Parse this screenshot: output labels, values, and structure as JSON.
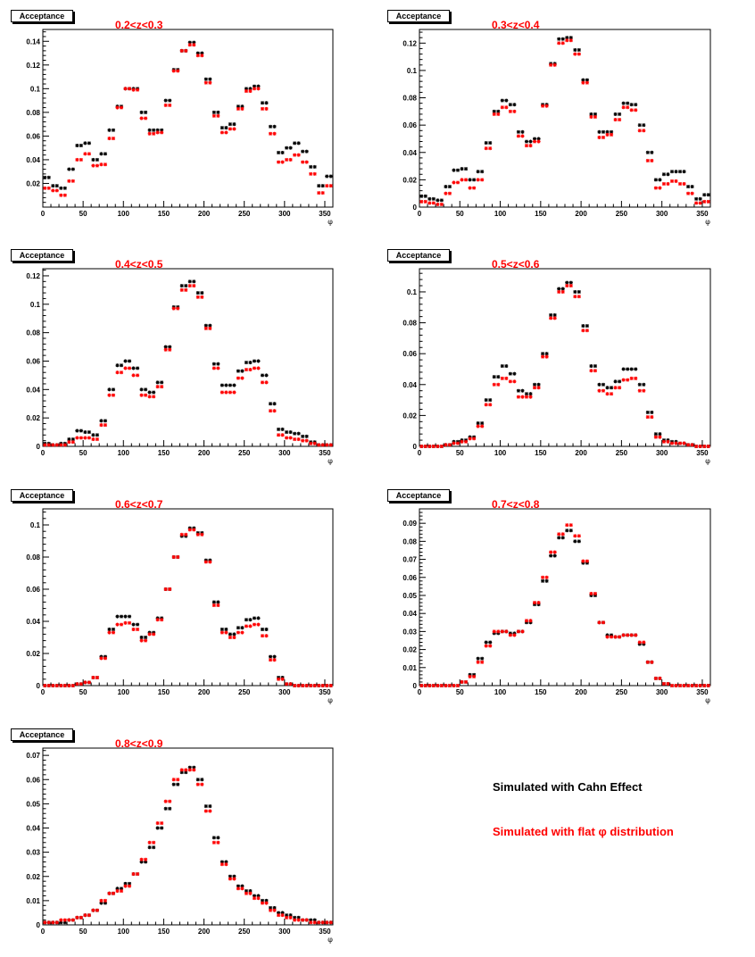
{
  "colors": {
    "cahn": "#000000",
    "flat": "#ff0000",
    "title": "#ff0000"
  },
  "legend": {
    "cahn_label": "Simulated with Cahn Effect",
    "flat_label": "Simulated with flat φ distribution"
  },
  "chart_data": [
    {
      "type": "scatter",
      "badge": "Acceptance",
      "title": "0.2<z<0.3",
      "xlabel": "φ",
      "xlim": [
        0,
        360
      ],
      "ylim": [
        0,
        0.15
      ],
      "xticks": [
        0,
        50,
        100,
        150,
        200,
        250,
        300,
        350
      ],
      "yticks": [
        0.02,
        0.04,
        0.06,
        0.08,
        0.1,
        0.12,
        0.14
      ],
      "yticklabels": [
        "0.02",
        "0.04",
        "0.06",
        "0.08",
        "0.1",
        "0.12",
        "0.14"
      ],
      "x": [
        5,
        15,
        25,
        35,
        45,
        55,
        65,
        75,
        85,
        95,
        105,
        115,
        125,
        135,
        145,
        155,
        165,
        175,
        185,
        195,
        205,
        215,
        225,
        235,
        245,
        255,
        265,
        275,
        285,
        295,
        305,
        315,
        325,
        335,
        345,
        355
      ],
      "series": [
        {
          "name": "Simulated with Cahn Effect",
          "color": "#000000",
          "values": [
            0.025,
            0.018,
            0.016,
            0.032,
            0.052,
            0.054,
            0.04,
            0.045,
            0.065,
            0.085,
            0.1,
            0.1,
            0.08,
            0.065,
            0.065,
            0.09,
            0.116,
            0.132,
            0.139,
            0.13,
            0.108,
            0.08,
            0.067,
            0.07,
            0.085,
            0.1,
            0.102,
            0.088,
            0.068,
            0.046,
            0.05,
            0.054,
            0.047,
            0.034,
            0.018,
            0.026
          ]
        },
        {
          "name": "Simulated with flat φ distribution",
          "color": "#ff0000",
          "values": [
            0.016,
            0.014,
            0.01,
            0.022,
            0.04,
            0.045,
            0.035,
            0.036,
            0.058,
            0.084,
            0.1,
            0.099,
            0.075,
            0.062,
            0.063,
            0.086,
            0.115,
            0.132,
            0.137,
            0.128,
            0.105,
            0.077,
            0.063,
            0.066,
            0.083,
            0.098,
            0.1,
            0.083,
            0.062,
            0.038,
            0.04,
            0.044,
            0.038,
            0.028,
            0.012,
            0.018
          ]
        }
      ]
    },
    {
      "type": "scatter",
      "badge": "Acceptance",
      "title": "0.3<z<0.4",
      "xlabel": "φ",
      "xlim": [
        0,
        360
      ],
      "ylim": [
        0,
        0.13
      ],
      "xticks": [
        0,
        50,
        100,
        150,
        200,
        250,
        300,
        350
      ],
      "yticks": [
        0,
        0.02,
        0.04,
        0.06,
        0.08,
        0.1,
        0.12
      ],
      "yticklabels": [
        "0",
        "0.02",
        "0.04",
        "0.06",
        "0.08",
        "0.1",
        "0.12"
      ],
      "x": [
        5,
        15,
        25,
        35,
        45,
        55,
        65,
        75,
        85,
        95,
        105,
        115,
        125,
        135,
        145,
        155,
        165,
        175,
        185,
        195,
        205,
        215,
        225,
        235,
        245,
        255,
        265,
        275,
        285,
        295,
        305,
        315,
        325,
        335,
        345,
        355
      ],
      "series": [
        {
          "name": "Simulated with Cahn Effect",
          "color": "#000000",
          "values": [
            0.008,
            0.006,
            0.005,
            0.015,
            0.027,
            0.028,
            0.02,
            0.026,
            0.047,
            0.07,
            0.078,
            0.075,
            0.055,
            0.048,
            0.05,
            0.075,
            0.105,
            0.123,
            0.124,
            0.115,
            0.093,
            0.068,
            0.055,
            0.055,
            0.068,
            0.076,
            0.075,
            0.06,
            0.04,
            0.02,
            0.024,
            0.026,
            0.026,
            0.015,
            0.006,
            0.009
          ]
        },
        {
          "name": "Simulated with flat φ distribution",
          "color": "#ff0000",
          "values": [
            0.004,
            0.003,
            0.002,
            0.01,
            0.018,
            0.02,
            0.014,
            0.02,
            0.043,
            0.068,
            0.073,
            0.07,
            0.052,
            0.045,
            0.048,
            0.074,
            0.104,
            0.12,
            0.122,
            0.112,
            0.091,
            0.066,
            0.051,
            0.053,
            0.064,
            0.073,
            0.071,
            0.056,
            0.034,
            0.014,
            0.017,
            0.019,
            0.017,
            0.01,
            0.003,
            0.004
          ]
        }
      ]
    },
    {
      "type": "scatter",
      "badge": "Acceptance",
      "title": "0.4<z<0.5",
      "xlabel": "φ",
      "xlim": [
        0,
        360
      ],
      "ylim": [
        0,
        0.125
      ],
      "xticks": [
        0,
        50,
        100,
        150,
        200,
        250,
        300,
        350
      ],
      "yticks": [
        0,
        0.02,
        0.04,
        0.06,
        0.08,
        0.1,
        0.12
      ],
      "yticklabels": [
        "0",
        "0.02",
        "0.04",
        "0.06",
        "0.08",
        "0.1",
        "0.12"
      ],
      "x": [
        5,
        15,
        25,
        35,
        45,
        55,
        65,
        75,
        85,
        95,
        105,
        115,
        125,
        135,
        145,
        155,
        165,
        175,
        185,
        195,
        205,
        215,
        225,
        235,
        245,
        255,
        265,
        275,
        285,
        295,
        305,
        315,
        325,
        335,
        345,
        355
      ],
      "series": [
        {
          "name": "Simulated with Cahn Effect",
          "color": "#000000",
          "values": [
            0.002,
            0.001,
            0.002,
            0.005,
            0.011,
            0.01,
            0.008,
            0.018,
            0.04,
            0.057,
            0.06,
            0.055,
            0.04,
            0.038,
            0.045,
            0.07,
            0.098,
            0.113,
            0.116,
            0.108,
            0.085,
            0.058,
            0.043,
            0.043,
            0.053,
            0.059,
            0.06,
            0.05,
            0.03,
            0.012,
            0.01,
            0.009,
            0.007,
            0.003,
            0.001,
            0.001
          ]
        },
        {
          "name": "Simulated with flat φ distribution",
          "color": "#ff0000",
          "values": [
            0.001,
            0.001,
            0.001,
            0.003,
            0.006,
            0.006,
            0.005,
            0.015,
            0.036,
            0.052,
            0.055,
            0.05,
            0.036,
            0.035,
            0.042,
            0.068,
            0.097,
            0.11,
            0.113,
            0.105,
            0.083,
            0.055,
            0.038,
            0.038,
            0.048,
            0.054,
            0.055,
            0.045,
            0.025,
            0.008,
            0.006,
            0.005,
            0.004,
            0.002,
            0.001,
            0.001
          ]
        }
      ]
    },
    {
      "type": "scatter",
      "badge": "Acceptance",
      "title": "0.5<z<0.6",
      "xlabel": "φ",
      "xlim": [
        0,
        360
      ],
      "ylim": [
        0,
        0.115
      ],
      "xticks": [
        0,
        50,
        100,
        150,
        200,
        250,
        300,
        350
      ],
      "yticks": [
        0,
        0.02,
        0.04,
        0.06,
        0.08,
        0.1
      ],
      "yticklabels": [
        "0",
        "0.02",
        "0.04",
        "0.06",
        "0.08",
        "0.1"
      ],
      "x": [
        5,
        15,
        25,
        35,
        45,
        55,
        65,
        75,
        85,
        95,
        105,
        115,
        125,
        135,
        145,
        155,
        165,
        175,
        185,
        195,
        205,
        215,
        225,
        235,
        245,
        255,
        265,
        275,
        285,
        295,
        305,
        315,
        325,
        335,
        345,
        355
      ],
      "series": [
        {
          "name": "Simulated with Cahn Effect",
          "color": "#000000",
          "values": [
            0.0,
            0.0,
            0.0,
            0.001,
            0.003,
            0.004,
            0.006,
            0.015,
            0.03,
            0.045,
            0.052,
            0.047,
            0.036,
            0.034,
            0.04,
            0.06,
            0.085,
            0.102,
            0.106,
            0.1,
            0.078,
            0.052,
            0.04,
            0.038,
            0.042,
            0.05,
            0.05,
            0.04,
            0.022,
            0.008,
            0.004,
            0.003,
            0.002,
            0.001,
            0.0,
            0.0
          ]
        },
        {
          "name": "Simulated with flat φ distribution",
          "color": "#ff0000",
          "values": [
            0.0,
            0.0,
            0.0,
            0.001,
            0.002,
            0.003,
            0.005,
            0.013,
            0.027,
            0.04,
            0.044,
            0.042,
            0.032,
            0.032,
            0.038,
            0.058,
            0.083,
            0.1,
            0.104,
            0.097,
            0.075,
            0.049,
            0.036,
            0.034,
            0.038,
            0.043,
            0.044,
            0.036,
            0.019,
            0.006,
            0.003,
            0.002,
            0.002,
            0.001,
            0.0,
            0.0
          ]
        }
      ]
    },
    {
      "type": "scatter",
      "badge": "Acceptance",
      "title": "0.6<z<0.7",
      "xlabel": "φ",
      "xlim": [
        0,
        360
      ],
      "ylim": [
        0,
        0.11
      ],
      "xticks": [
        0,
        50,
        100,
        150,
        200,
        250,
        300,
        350
      ],
      "yticks": [
        0,
        0.02,
        0.04,
        0.06,
        0.08,
        0.1
      ],
      "yticklabels": [
        "0",
        "0.02",
        "0.04",
        "0.06",
        "0.08",
        "0.1"
      ],
      "x": [
        5,
        15,
        25,
        35,
        45,
        55,
        65,
        75,
        85,
        95,
        105,
        115,
        125,
        135,
        145,
        155,
        165,
        175,
        185,
        195,
        205,
        215,
        225,
        235,
        245,
        255,
        265,
        275,
        285,
        295,
        305,
        315,
        325,
        335,
        345,
        355
      ],
      "series": [
        {
          "name": "Simulated with Cahn Effect",
          "color": "#000000",
          "values": [
            0.0,
            0.0,
            0.0,
            0.0,
            0.001,
            0.002,
            0.005,
            0.018,
            0.035,
            0.043,
            0.043,
            0.038,
            0.03,
            0.033,
            0.042,
            0.06,
            0.08,
            0.093,
            0.098,
            0.095,
            0.078,
            0.052,
            0.035,
            0.032,
            0.036,
            0.041,
            0.042,
            0.035,
            0.018,
            0.005,
            0.001,
            0.0,
            0.0,
            0.0,
            0.0,
            0.0
          ]
        },
        {
          "name": "Simulated with flat φ distribution",
          "color": "#ff0000",
          "values": [
            0.0,
            0.0,
            0.0,
            0.0,
            0.001,
            0.002,
            0.005,
            0.017,
            0.033,
            0.038,
            0.039,
            0.035,
            0.028,
            0.032,
            0.041,
            0.06,
            0.08,
            0.094,
            0.097,
            0.094,
            0.077,
            0.05,
            0.033,
            0.03,
            0.033,
            0.037,
            0.038,
            0.031,
            0.016,
            0.004,
            0.001,
            0.0,
            0.0,
            0.0,
            0.0,
            0.0
          ]
        }
      ]
    },
    {
      "type": "scatter",
      "badge": "Acceptance",
      "title": "0.7<z<0.8",
      "xlabel": "φ",
      "xlim": [
        0,
        360
      ],
      "ylim": [
        0,
        0.098
      ],
      "xticks": [
        0,
        50,
        100,
        150,
        200,
        250,
        300,
        350
      ],
      "yticks": [
        0,
        0.01,
        0.02,
        0.03,
        0.04,
        0.05,
        0.06,
        0.07,
        0.08,
        0.09
      ],
      "yticklabels": [
        "0",
        "0.01",
        "0.02",
        "0.03",
        "0.04",
        "0.05",
        "0.06",
        "0.07",
        "0.08",
        "0.09"
      ],
      "x": [
        5,
        15,
        25,
        35,
        45,
        55,
        65,
        75,
        85,
        95,
        105,
        115,
        125,
        135,
        145,
        155,
        165,
        175,
        185,
        195,
        205,
        215,
        225,
        235,
        245,
        255,
        265,
        275,
        285,
        295,
        305,
        315,
        325,
        335,
        345,
        355
      ],
      "series": [
        {
          "name": "Simulated with Cahn Effect",
          "color": "#000000",
          "values": [
            0.0,
            0.0,
            0.0,
            0.0,
            0.0,
            0.002,
            0.006,
            0.015,
            0.024,
            0.029,
            0.03,
            0.029,
            0.03,
            0.035,
            0.045,
            0.058,
            0.072,
            0.082,
            0.086,
            0.08,
            0.068,
            0.05,
            0.035,
            0.028,
            0.027,
            0.028,
            0.028,
            0.023,
            0.013,
            0.004,
            0.001,
            0.0,
            0.0,
            0.0,
            0.0,
            0.0
          ]
        },
        {
          "name": "Simulated with flat φ distribution",
          "color": "#ff0000",
          "values": [
            0.0,
            0.0,
            0.0,
            0.0,
            0.0,
            0.002,
            0.005,
            0.013,
            0.022,
            0.03,
            0.03,
            0.028,
            0.03,
            0.036,
            0.046,
            0.06,
            0.074,
            0.084,
            0.089,
            0.083,
            0.069,
            0.051,
            0.035,
            0.027,
            0.027,
            0.028,
            0.028,
            0.024,
            0.013,
            0.004,
            0.001,
            0.0,
            0.0,
            0.0,
            0.0,
            0.0
          ]
        }
      ]
    },
    {
      "type": "scatter",
      "badge": "Acceptance",
      "title": "0.8<z<0.9",
      "xlabel": "φ",
      "xlim": [
        0,
        360
      ],
      "ylim": [
        0,
        0.073
      ],
      "xticks": [
        0,
        50,
        100,
        150,
        200,
        250,
        300,
        350
      ],
      "yticks": [
        0,
        0.01,
        0.02,
        0.03,
        0.04,
        0.05,
        0.06,
        0.07
      ],
      "yticklabels": [
        "0",
        "0.01",
        "0.02",
        "0.03",
        "0.04",
        "0.05",
        "0.06",
        "0.07"
      ],
      "x": [
        5,
        15,
        25,
        35,
        45,
        55,
        65,
        75,
        85,
        95,
        105,
        115,
        125,
        135,
        145,
        155,
        165,
        175,
        185,
        195,
        205,
        215,
        225,
        235,
        245,
        255,
        265,
        275,
        285,
        295,
        305,
        315,
        325,
        335,
        345,
        355
      ],
      "series": [
        {
          "name": "Simulated with Cahn Effect",
          "color": "#000000",
          "values": [
            0.001,
            0.001,
            0.001,
            0.002,
            0.003,
            0.004,
            0.006,
            0.009,
            0.013,
            0.015,
            0.017,
            0.021,
            0.026,
            0.032,
            0.04,
            0.048,
            0.058,
            0.063,
            0.065,
            0.06,
            0.049,
            0.036,
            0.026,
            0.02,
            0.016,
            0.014,
            0.012,
            0.01,
            0.007,
            0.005,
            0.004,
            0.003,
            0.002,
            0.002,
            0.001,
            0.001
          ]
        },
        {
          "name": "Simulated with flat φ distribution",
          "color": "#ff0000",
          "values": [
            0.001,
            0.001,
            0.002,
            0.002,
            0.003,
            0.004,
            0.006,
            0.01,
            0.013,
            0.014,
            0.016,
            0.021,
            0.027,
            0.034,
            0.042,
            0.051,
            0.06,
            0.064,
            0.064,
            0.058,
            0.047,
            0.034,
            0.025,
            0.019,
            0.015,
            0.013,
            0.011,
            0.009,
            0.006,
            0.004,
            0.003,
            0.002,
            0.002,
            0.001,
            0.001,
            0.001
          ]
        }
      ]
    }
  ]
}
